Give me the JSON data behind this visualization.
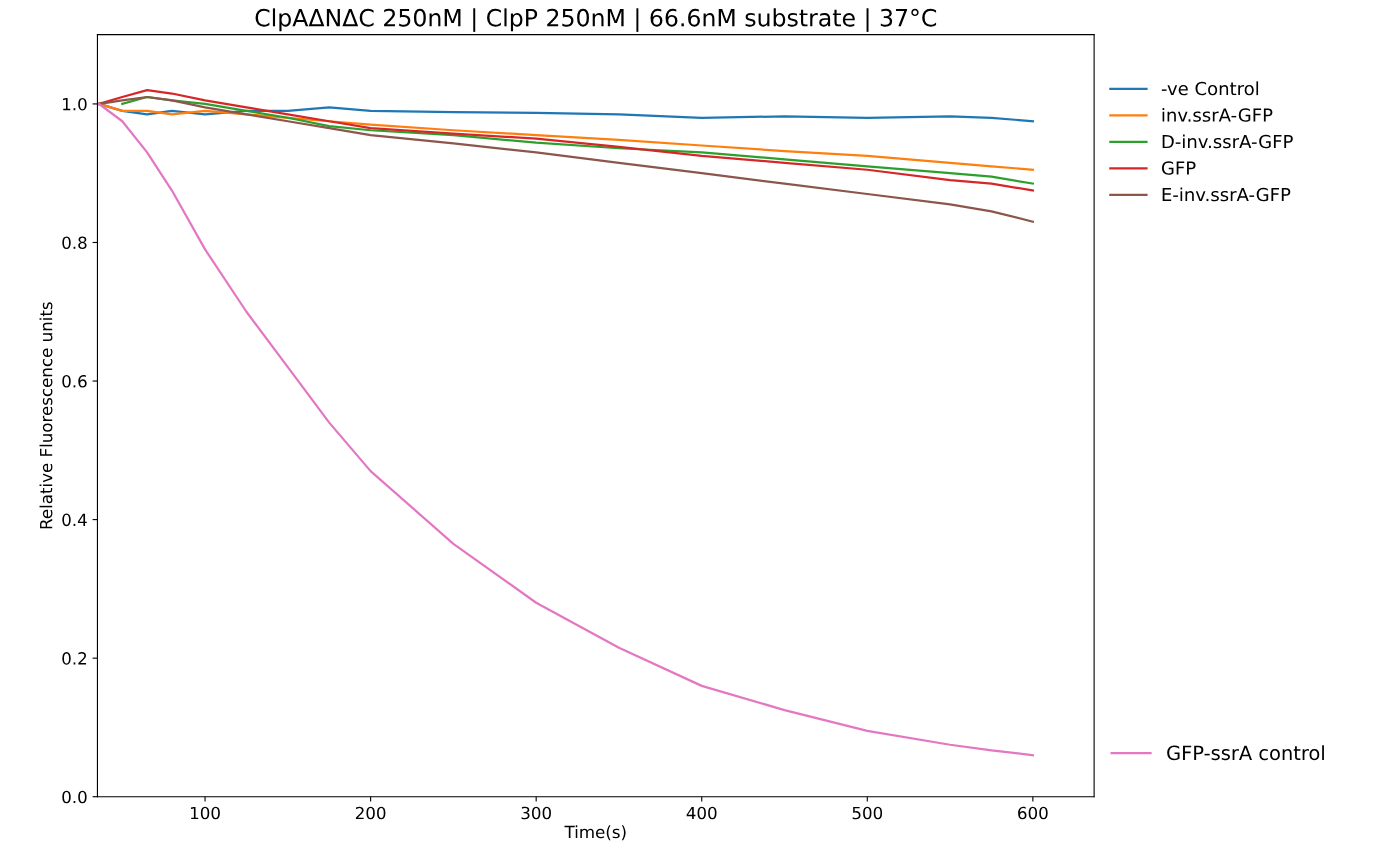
{
  "chart_data": {
    "type": "line",
    "title": "ClpAΔNΔC 250nM | ClpP 250nM | 66.6nM substrate | 37°C",
    "xlabel": "Time(s)",
    "ylabel": "Relative Fluorescence units",
    "xlim": [
      35,
      637
    ],
    "xticks": [
      100,
      200,
      300,
      400,
      500,
      600
    ],
    "ylim": [
      0,
      1.1
    ],
    "yticks": [
      {
        "value": 0,
        "label": "0.0"
      },
      0.2,
      0.4,
      0.6,
      0.8,
      {
        "value": 1,
        "label": "1.0"
      }
    ],
    "grid": false,
    "legend": "right",
    "x": [
      36,
      50,
      65,
      80,
      100,
      125,
      150,
      175,
      200,
      250,
      300,
      350,
      400,
      450,
      500,
      550,
      575,
      600
    ],
    "series": [
      {
        "name": "-ve Control",
        "color": "#1f77b4",
        "values": [
          1.0,
          0.99,
          0.985,
          0.99,
          0.985,
          0.99,
          0.99,
          0.995,
          0.99,
          0.988,
          0.987,
          0.985,
          0.98,
          0.982,
          0.98,
          0.982,
          0.98,
          0.975
        ]
      },
      {
        "name": "inv.ssrA-GFP",
        "color": "#ff7f0e",
        "values": [
          1.0,
          0.99,
          0.99,
          0.985,
          0.99,
          0.985,
          0.98,
          0.975,
          0.97,
          0.962,
          0.955,
          0.948,
          0.94,
          0.932,
          0.925,
          0.915,
          0.91,
          0.905
        ]
      },
      {
        "name": "D-inv.ssrA-GFP",
        "color": "#2ca02c",
        "values": [
          null,
          1.0,
          1.01,
          1.005,
          1.0,
          0.99,
          0.98,
          0.968,
          0.962,
          0.955,
          0.944,
          0.936,
          0.93,
          0.92,
          0.91,
          0.9,
          0.895,
          0.885
        ]
      },
      {
        "name": "GFP",
        "color": "#d62728",
        "values": [
          1.0,
          1.01,
          1.02,
          1.015,
          1.005,
          0.995,
          0.985,
          0.975,
          0.965,
          0.957,
          0.95,
          0.938,
          0.925,
          0.915,
          0.905,
          0.89,
          0.885,
          0.875
        ]
      },
      {
        "name": "E-inv.ssrA-GFP",
        "color": "#8c564b",
        "values": [
          1.0,
          1.005,
          1.01,
          1.005,
          0.995,
          0.985,
          0.975,
          0.965,
          0.955,
          0.943,
          0.93,
          0.915,
          0.9,
          0.885,
          0.87,
          0.855,
          0.845,
          0.83
        ]
      },
      {
        "name": "GFP-ssrA control",
        "color": "#e377c2",
        "values": [
          1.0,
          0.975,
          0.93,
          0.875,
          0.79,
          0.7,
          0.62,
          0.54,
          0.47,
          0.365,
          0.28,
          0.215,
          0.16,
          0.125,
          0.095,
          0.075,
          0.067,
          0.06
        ]
      }
    ]
  }
}
